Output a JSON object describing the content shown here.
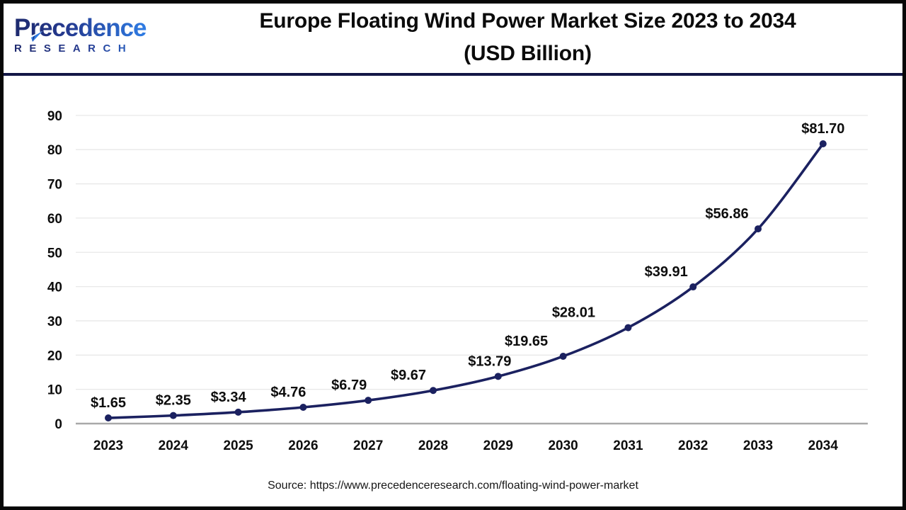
{
  "header": {
    "logo": {
      "text": "Precedence",
      "subtext": "RESEARCH"
    },
    "title_line1": "Europe Floating Wind Power Market Size 2023 to 2034",
    "title_line2": "(USD Billion)"
  },
  "chart_data": {
    "type": "line",
    "title": "Europe Floating Wind Power Market Size 2023 to 2034 (USD Billion)",
    "categories": [
      "2023",
      "2024",
      "2025",
      "2026",
      "2027",
      "2028",
      "2029",
      "2030",
      "2031",
      "2032",
      "2033",
      "2034"
    ],
    "series": [
      {
        "name": "Market Size (USD Billion)",
        "values": [
          1.65,
          2.35,
          3.34,
          4.76,
          6.79,
          9.67,
          13.79,
          19.65,
          28.01,
          39.91,
          56.86,
          81.7
        ]
      }
    ],
    "point_labels": [
      "$1.65",
      "$2.35",
      "$3.34",
      "$4.76",
      "$6.79",
      "$9.67",
      "$13.79",
      "$19.65",
      "$28.01",
      "$39.91",
      "$56.86",
      "$81.70"
    ],
    "xlabel": "",
    "ylabel": "",
    "ylim": [
      0,
      90
    ],
    "yticks": [
      0,
      10,
      20,
      30,
      40,
      50,
      60,
      70,
      80,
      90
    ],
    "grid": true,
    "legend": false,
    "colors": {
      "line": "#1b2160",
      "marker": "#1b2160",
      "gridline": "#e8e8e8",
      "zero_axis": "#a9a9a9",
      "text": "#0d0d0d",
      "header_divider": "#131746",
      "logo_dark_blue": "#1e2a6e",
      "logo_light_blue": "#2f7de5"
    }
  },
  "footer": {
    "source": "Source: https://www.precedenceresearch.com/floating-wind-power-market"
  }
}
